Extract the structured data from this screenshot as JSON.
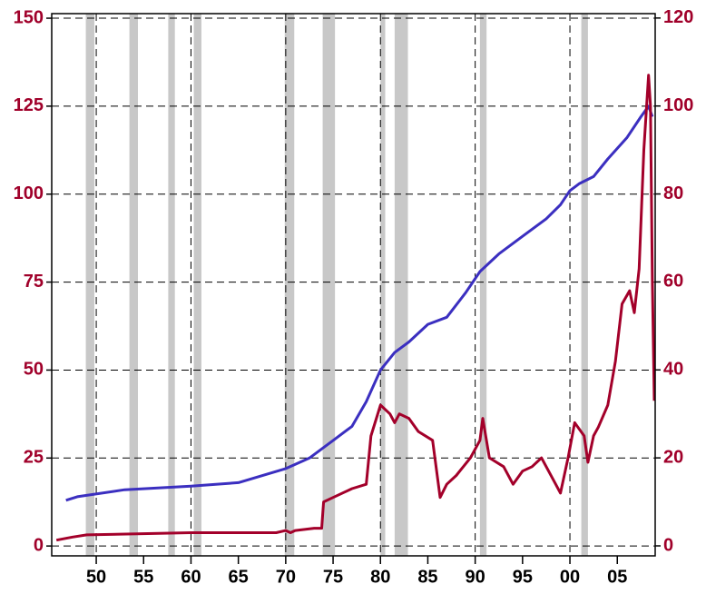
{
  "chart_data": {
    "type": "line",
    "xlim": [
      1945.3,
      2009.0
    ],
    "xticks": [
      {
        "value": 1950,
        "label": "50"
      },
      {
        "value": 1955,
        "label": "55"
      },
      {
        "value": 1960,
        "label": "60"
      },
      {
        "value": 1965,
        "label": "65"
      },
      {
        "value": 1970,
        "label": "70"
      },
      {
        "value": 1975,
        "label": "75"
      },
      {
        "value": 1980,
        "label": "80"
      },
      {
        "value": 1985,
        "label": "85"
      },
      {
        "value": 1990,
        "label": "90"
      },
      {
        "value": 1995,
        "label": "95"
      },
      {
        "value": 2000,
        "label": "00"
      },
      {
        "value": 2005,
        "label": "05"
      }
    ],
    "xgrid": [
      1950,
      1960,
      1970,
      1980,
      1990,
      2000
    ],
    "ylim": [
      -2.8,
      151.3
    ],
    "yticks": [
      0,
      25,
      50,
      75,
      100,
      125,
      150
    ],
    "y2lim": [
      -2.27,
      121.0
    ],
    "y2ticks": [
      0,
      20,
      40,
      60,
      80,
      100,
      120
    ],
    "grid": true,
    "axis_color": "#a0002a",
    "recession_color": "#c8c8c8",
    "recessions": [
      [
        1948.9,
        1949.8
      ],
      [
        1953.5,
        1954.4
      ],
      [
        1957.6,
        1958.3
      ],
      [
        1960.3,
        1961.1
      ],
      [
        1969.9,
        1970.9
      ],
      [
        1973.9,
        1975.2
      ],
      [
        1980.0,
        1980.5
      ],
      [
        1981.5,
        1982.9
      ],
      [
        1990.5,
        1991.2
      ],
      [
        2001.2,
        2001.9
      ]
    ],
    "series": [
      {
        "color": "#3b2fc0",
        "x": [
          1946.8,
          1948,
          1953,
          1960,
          1965,
          1970,
          1972.5,
          1975,
          1977,
          1978.5,
          1980,
          1981.5,
          1983,
          1985,
          1987,
          1989,
          1990.5,
          1992.5,
          1995,
          1997.5,
          1999,
          2000,
          2001,
          2002.5,
          2004,
          2006,
          2007.5,
          2008.3,
          2008.7
        ],
        "values": [
          13,
          14,
          16,
          17,
          18,
          22,
          25,
          30,
          34,
          41,
          50,
          55,
          58,
          63,
          65,
          72,
          78,
          83,
          88,
          93,
          97,
          101,
          103,
          105,
          110,
          116,
          122,
          125,
          122
        ]
      },
      {
        "color": "#a3002a",
        "axis": "y2",
        "x": [
          1945.8,
          1947.5,
          1949,
          1960,
          1969,
          1970,
          1970.5,
          1971,
          1973,
          1973.8,
          1974,
          1975,
          1977,
          1978.5,
          1979,
          1980,
          1981,
          1981.5,
          1982,
          1983,
          1984,
          1985.5,
          1986.3,
          1987,
          1988,
          1989.5,
          1990.5,
          1990.8,
          1991.5,
          1993,
          1994,
          1995,
          1996,
          1997,
          1998.5,
          1999,
          1999.8,
          2000.5,
          2001.5,
          2001.9,
          2002.5,
          2003,
          2004,
          2004.8,
          2005.5,
          2006.3,
          2006.8,
          2007.3,
          2007.8,
          2008.3,
          2008.5,
          2008.7,
          2008.9
        ],
        "values": [
          1.3,
          2,
          2.5,
          3,
          3,
          3.5,
          3,
          3.5,
          4,
          4,
          10,
          11,
          13,
          14,
          25,
          32,
          30,
          28,
          30,
          29,
          26,
          24,
          11,
          14,
          16,
          20,
          24,
          29,
          20,
          18,
          14,
          17,
          18,
          20,
          14,
          12,
          20,
          28,
          25,
          19,
          25,
          27,
          32,
          42,
          55,
          58,
          53,
          63,
          90,
          107,
          100,
          60,
          33
        ]
      }
    ]
  }
}
